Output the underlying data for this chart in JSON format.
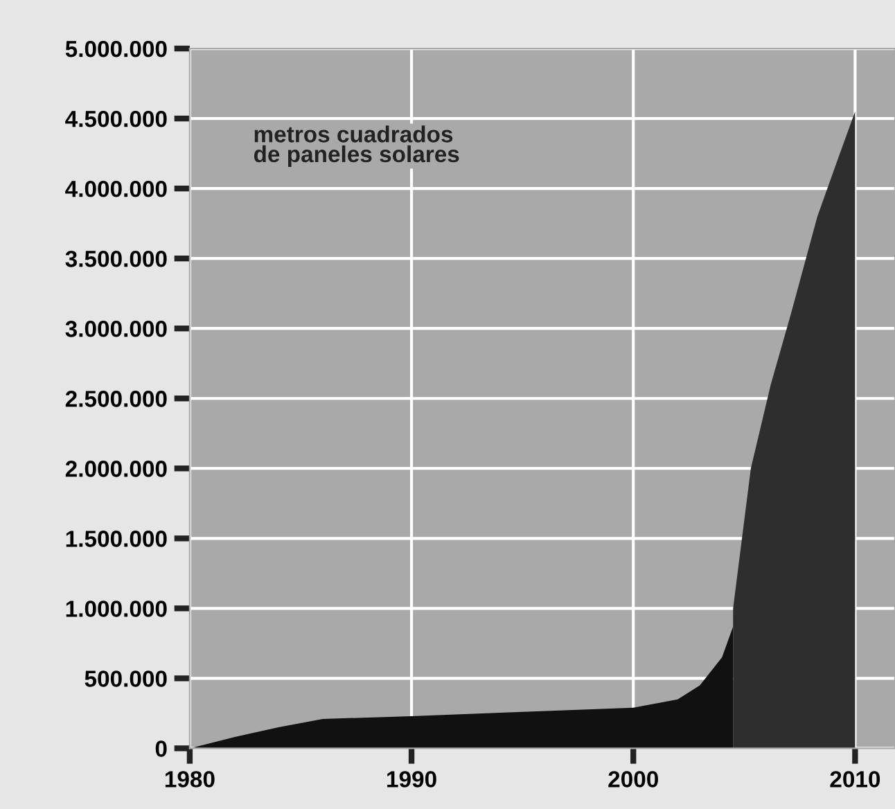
{
  "chart_data": {
    "type": "area",
    "annotations": [
      "metros cuadrados\nde paneles solares"
    ],
    "series": [
      {
        "color": "#111111",
        "x": [
          1980,
          1982,
          1984,
          1986,
          1990,
          1995,
          2000,
          2002,
          2003,
          2004,
          2004.5
        ],
        "values": [
          0,
          80000,
          150000,
          210000,
          230000,
          260000,
          290000,
          350000,
          450000,
          650000,
          870000
        ]
      },
      {
        "color": "#2e2e2e",
        "x": [
          2004.5,
          2005.3,
          2006.2,
          2007.1,
          2008.3,
          2009.2,
          2010
        ],
        "values": [
          1000000,
          2000000,
          2600000,
          3100000,
          3800000,
          4200000,
          4550000
        ]
      }
    ],
    "xlim": [
      1980,
      2011.8
    ],
    "xticks": [
      1980,
      1990,
      2000,
      2010
    ],
    "ylim": [
      0,
      5000000
    ],
    "yticks": [
      {
        "value": 0,
        "label": "0"
      },
      {
        "value": 500000,
        "label": "500.000"
      },
      {
        "value": 1000000,
        "label": "1.000.000"
      },
      {
        "value": 1500000,
        "label": "1.500.000"
      },
      {
        "value": 2000000,
        "label": "2.000.000"
      },
      {
        "value": 2500000,
        "label": "2.500.000"
      },
      {
        "value": 3000000,
        "label": "3.000.000"
      },
      {
        "value": 3500000,
        "label": "3.500.000"
      },
      {
        "value": 4000000,
        "label": "4.000.000"
      },
      {
        "value": 4500000,
        "label": "4.500.000"
      },
      {
        "value": 5000000,
        "label": "5.000.000"
      }
    ],
    "grid": true
  }
}
